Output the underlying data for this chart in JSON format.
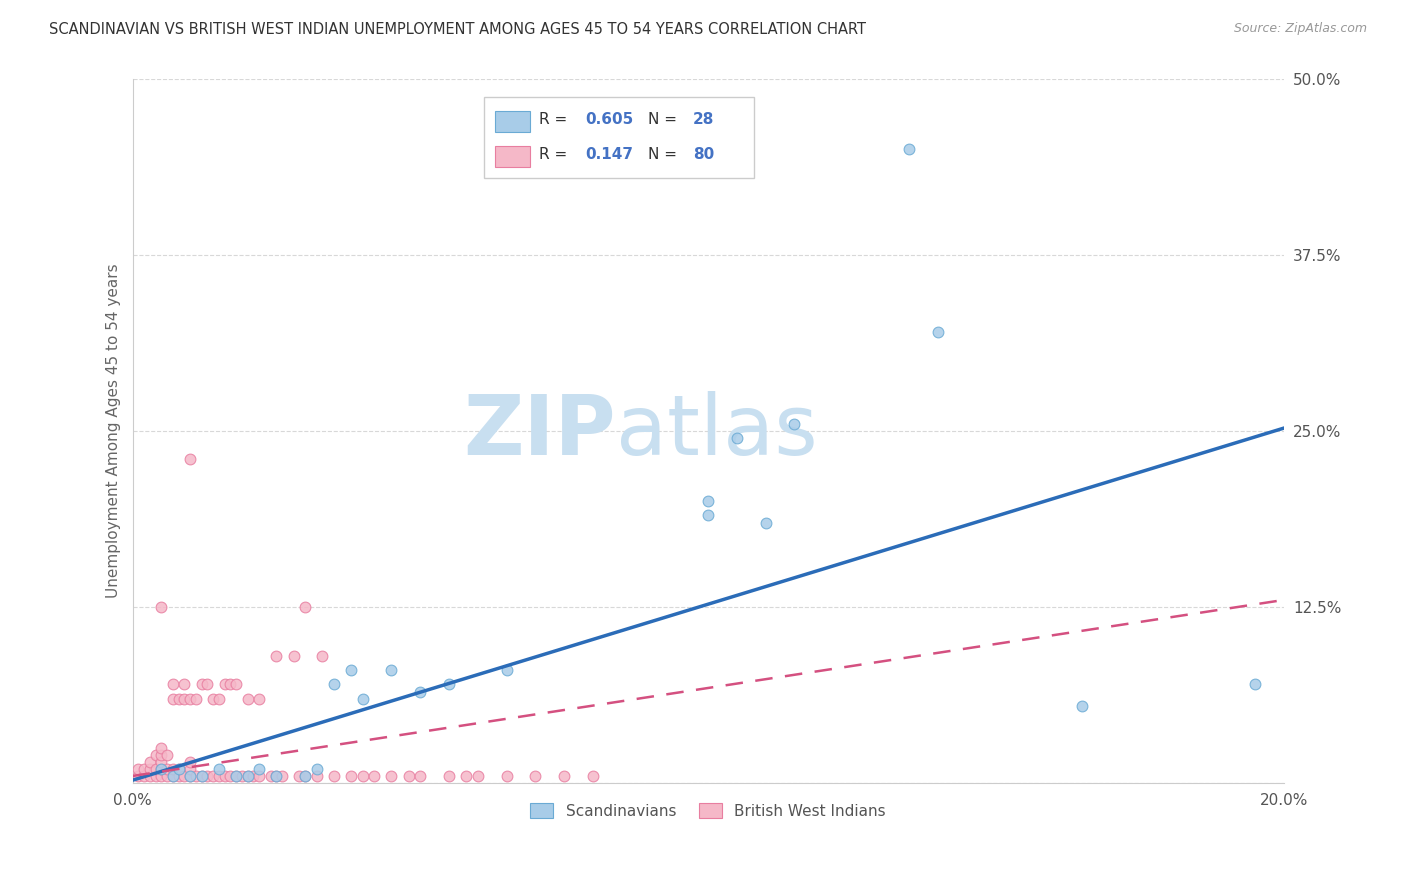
{
  "title": "SCANDINAVIAN VS BRITISH WEST INDIAN UNEMPLOYMENT AMONG AGES 45 TO 54 YEARS CORRELATION CHART",
  "source": "Source: ZipAtlas.com",
  "ylabel": "Unemployment Among Ages 45 to 54 years",
  "xlim": [
    0.0,
    0.2
  ],
  "ylim": [
    0.0,
    0.5
  ],
  "xticks": [
    0.0,
    0.05,
    0.1,
    0.15,
    0.2
  ],
  "xticklabels": [
    "0.0%",
    "",
    "",
    "",
    "20.0%"
  ],
  "yticks": [
    0.0,
    0.125,
    0.25,
    0.375,
    0.5
  ],
  "yticklabels": [
    "",
    "12.5%",
    "25.0%",
    "37.5%",
    "50.0%"
  ],
  "scatter_blue": [
    [
      0.005,
      0.01
    ],
    [
      0.007,
      0.005
    ],
    [
      0.008,
      0.01
    ],
    [
      0.01,
      0.005
    ],
    [
      0.012,
      0.005
    ],
    [
      0.015,
      0.01
    ],
    [
      0.018,
      0.005
    ],
    [
      0.02,
      0.005
    ],
    [
      0.022,
      0.01
    ],
    [
      0.025,
      0.005
    ],
    [
      0.03,
      0.005
    ],
    [
      0.032,
      0.01
    ],
    [
      0.035,
      0.07
    ],
    [
      0.038,
      0.08
    ],
    [
      0.04,
      0.06
    ],
    [
      0.045,
      0.08
    ],
    [
      0.05,
      0.065
    ],
    [
      0.055,
      0.07
    ],
    [
      0.065,
      0.08
    ],
    [
      0.1,
      0.19
    ],
    [
      0.1,
      0.2
    ],
    [
      0.105,
      0.245
    ],
    [
      0.11,
      0.185
    ],
    [
      0.115,
      0.255
    ],
    [
      0.135,
      0.45
    ],
    [
      0.14,
      0.32
    ],
    [
      0.165,
      0.055
    ],
    [
      0.195,
      0.07
    ]
  ],
  "scatter_pink": [
    [
      0.001,
      0.005
    ],
    [
      0.001,
      0.01
    ],
    [
      0.002,
      0.005
    ],
    [
      0.002,
      0.01
    ],
    [
      0.003,
      0.005
    ],
    [
      0.003,
      0.01
    ],
    [
      0.003,
      0.015
    ],
    [
      0.004,
      0.005
    ],
    [
      0.004,
      0.01
    ],
    [
      0.004,
      0.02
    ],
    [
      0.005,
      0.005
    ],
    [
      0.005,
      0.01
    ],
    [
      0.005,
      0.015
    ],
    [
      0.005,
      0.02
    ],
    [
      0.005,
      0.025
    ],
    [
      0.006,
      0.005
    ],
    [
      0.006,
      0.01
    ],
    [
      0.006,
      0.02
    ],
    [
      0.007,
      0.005
    ],
    [
      0.007,
      0.01
    ],
    [
      0.007,
      0.06
    ],
    [
      0.007,
      0.07
    ],
    [
      0.008,
      0.005
    ],
    [
      0.008,
      0.01
    ],
    [
      0.008,
      0.06
    ],
    [
      0.009,
      0.005
    ],
    [
      0.009,
      0.06
    ],
    [
      0.009,
      0.07
    ],
    [
      0.01,
      0.005
    ],
    [
      0.01,
      0.01
    ],
    [
      0.01,
      0.015
    ],
    [
      0.01,
      0.06
    ],
    [
      0.011,
      0.005
    ],
    [
      0.011,
      0.06
    ],
    [
      0.012,
      0.005
    ],
    [
      0.012,
      0.07
    ],
    [
      0.013,
      0.005
    ],
    [
      0.013,
      0.07
    ],
    [
      0.014,
      0.005
    ],
    [
      0.014,
      0.06
    ],
    [
      0.015,
      0.005
    ],
    [
      0.015,
      0.06
    ],
    [
      0.016,
      0.005
    ],
    [
      0.016,
      0.07
    ],
    [
      0.017,
      0.005
    ],
    [
      0.017,
      0.07
    ],
    [
      0.018,
      0.005
    ],
    [
      0.018,
      0.07
    ],
    [
      0.019,
      0.005
    ],
    [
      0.02,
      0.005
    ],
    [
      0.02,
      0.06
    ],
    [
      0.021,
      0.005
    ],
    [
      0.022,
      0.005
    ],
    [
      0.022,
      0.06
    ],
    [
      0.024,
      0.005
    ],
    [
      0.025,
      0.005
    ],
    [
      0.025,
      0.09
    ],
    [
      0.026,
      0.005
    ],
    [
      0.028,
      0.09
    ],
    [
      0.029,
      0.005
    ],
    [
      0.03,
      0.005
    ],
    [
      0.032,
      0.005
    ],
    [
      0.033,
      0.09
    ],
    [
      0.035,
      0.005
    ],
    [
      0.038,
      0.005
    ],
    [
      0.04,
      0.005
    ],
    [
      0.042,
      0.005
    ],
    [
      0.045,
      0.005
    ],
    [
      0.048,
      0.005
    ],
    [
      0.05,
      0.005
    ],
    [
      0.055,
      0.005
    ],
    [
      0.058,
      0.005
    ],
    [
      0.01,
      0.23
    ],
    [
      0.005,
      0.125
    ],
    [
      0.03,
      0.125
    ],
    [
      0.06,
      0.005
    ],
    [
      0.065,
      0.005
    ],
    [
      0.07,
      0.005
    ],
    [
      0.075,
      0.005
    ],
    [
      0.08,
      0.005
    ]
  ],
  "trendline_blue": [
    [
      0.0,
      0.002
    ],
    [
      0.2,
      0.252
    ]
  ],
  "trendline_pink": [
    [
      0.0,
      0.005
    ],
    [
      0.2,
      0.13
    ]
  ],
  "blue_scatter_color": "#a8cce8",
  "blue_scatter_edge": "#6aaad4",
  "pink_scatter_color": "#f5b8c8",
  "pink_scatter_edge": "#e87ea0",
  "blue_line_color": "#2b6cb8",
  "pink_line_color": "#d45080",
  "legend_text_color": "#4472c4",
  "scatter_size": 60,
  "background_color": "#ffffff",
  "watermark_zip_color": "#c8dff0",
  "watermark_atlas_color": "#c8dff0",
  "grid_color": "#d8d8d8"
}
